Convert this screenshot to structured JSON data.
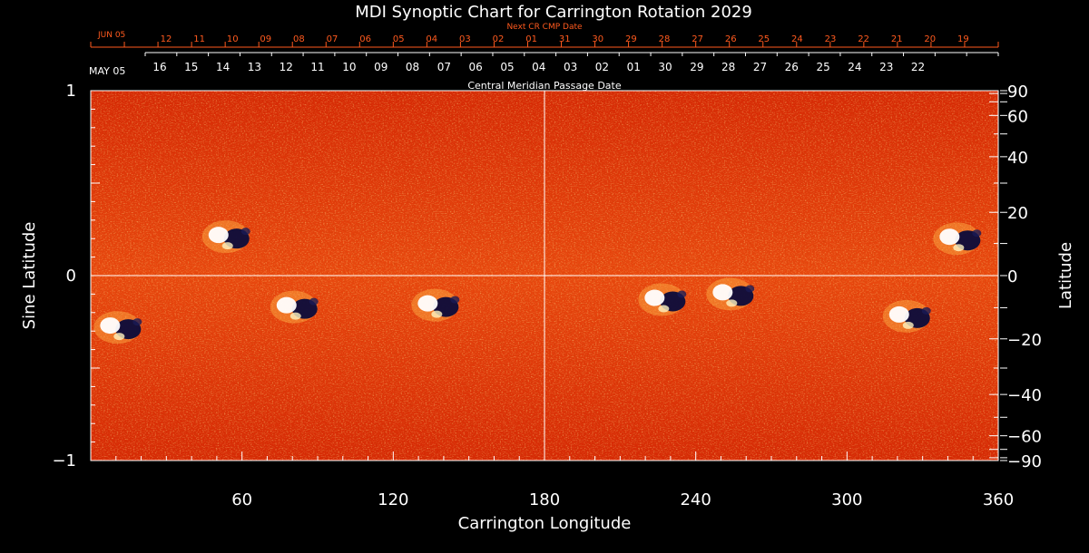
{
  "chart_data": {
    "type": "heatmap",
    "title": "MDI Synoptic Chart for Carrington Rotation 2029",
    "xlabel": "Carrington Longitude",
    "ylabel_left": "Sine Latitude",
    "ylabel_right": "Latitude",
    "xlim": [
      0,
      360
    ],
    "ylim": [
      -1,
      1
    ],
    "x_ticks": [
      "60",
      "120",
      "180",
      "240",
      "300",
      "360"
    ],
    "y_ticks_left": [
      "1",
      "0",
      "−1"
    ],
    "y_ticks_right": [
      "90",
      "60",
      "40",
      "20",
      "0",
      "−20",
      "−40",
      "−60",
      "−90"
    ],
    "top_axis_label": "Central Meridian Passage Date",
    "top_axis_start": "MAY 05",
    "top_axis_dates": [
      "16",
      "15",
      "14",
      "13",
      "12",
      "11",
      "10",
      "09",
      "08",
      "07",
      "06",
      "05",
      "04",
      "03",
      "02",
      "01",
      "30",
      "29",
      "28",
      "27",
      "26",
      "25",
      "24",
      "23",
      "22"
    ],
    "next_axis_label": "Next CR CMP Date",
    "next_axis_start": "JUN 05",
    "next_axis_dates": [
      "12",
      "11",
      "10",
      "09",
      "08",
      "07",
      "06",
      "05",
      "04",
      "03",
      "02",
      "01",
      "31",
      "30",
      "29",
      "28",
      "27",
      "26",
      "25",
      "24",
      "23",
      "22",
      "21",
      "20",
      "19"
    ],
    "regions": [
      {
        "lon": 55,
        "sinlat": 0.21,
        "polarity": "bipolar"
      },
      {
        "lon": 12,
        "sinlat": -0.28,
        "polarity": "bipolar"
      },
      {
        "lon": 82,
        "sinlat": -0.17,
        "polarity": "bipolar"
      },
      {
        "lon": 138,
        "sinlat": -0.16,
        "polarity": "bipolar"
      },
      {
        "lon": 228,
        "sinlat": -0.13,
        "polarity": "bipolar"
      },
      {
        "lon": 255,
        "sinlat": -0.1,
        "polarity": "bipolar"
      },
      {
        "lon": 325,
        "sinlat": -0.22,
        "polarity": "bipolar"
      },
      {
        "lon": 345,
        "sinlat": 0.2,
        "polarity": "bipolar"
      }
    ],
    "colors": {
      "background": "#000000",
      "field": "#e8400c",
      "positive": "#ffffff",
      "negative": "#0a0a3a",
      "next_axis": "#ff5a1e"
    }
  }
}
